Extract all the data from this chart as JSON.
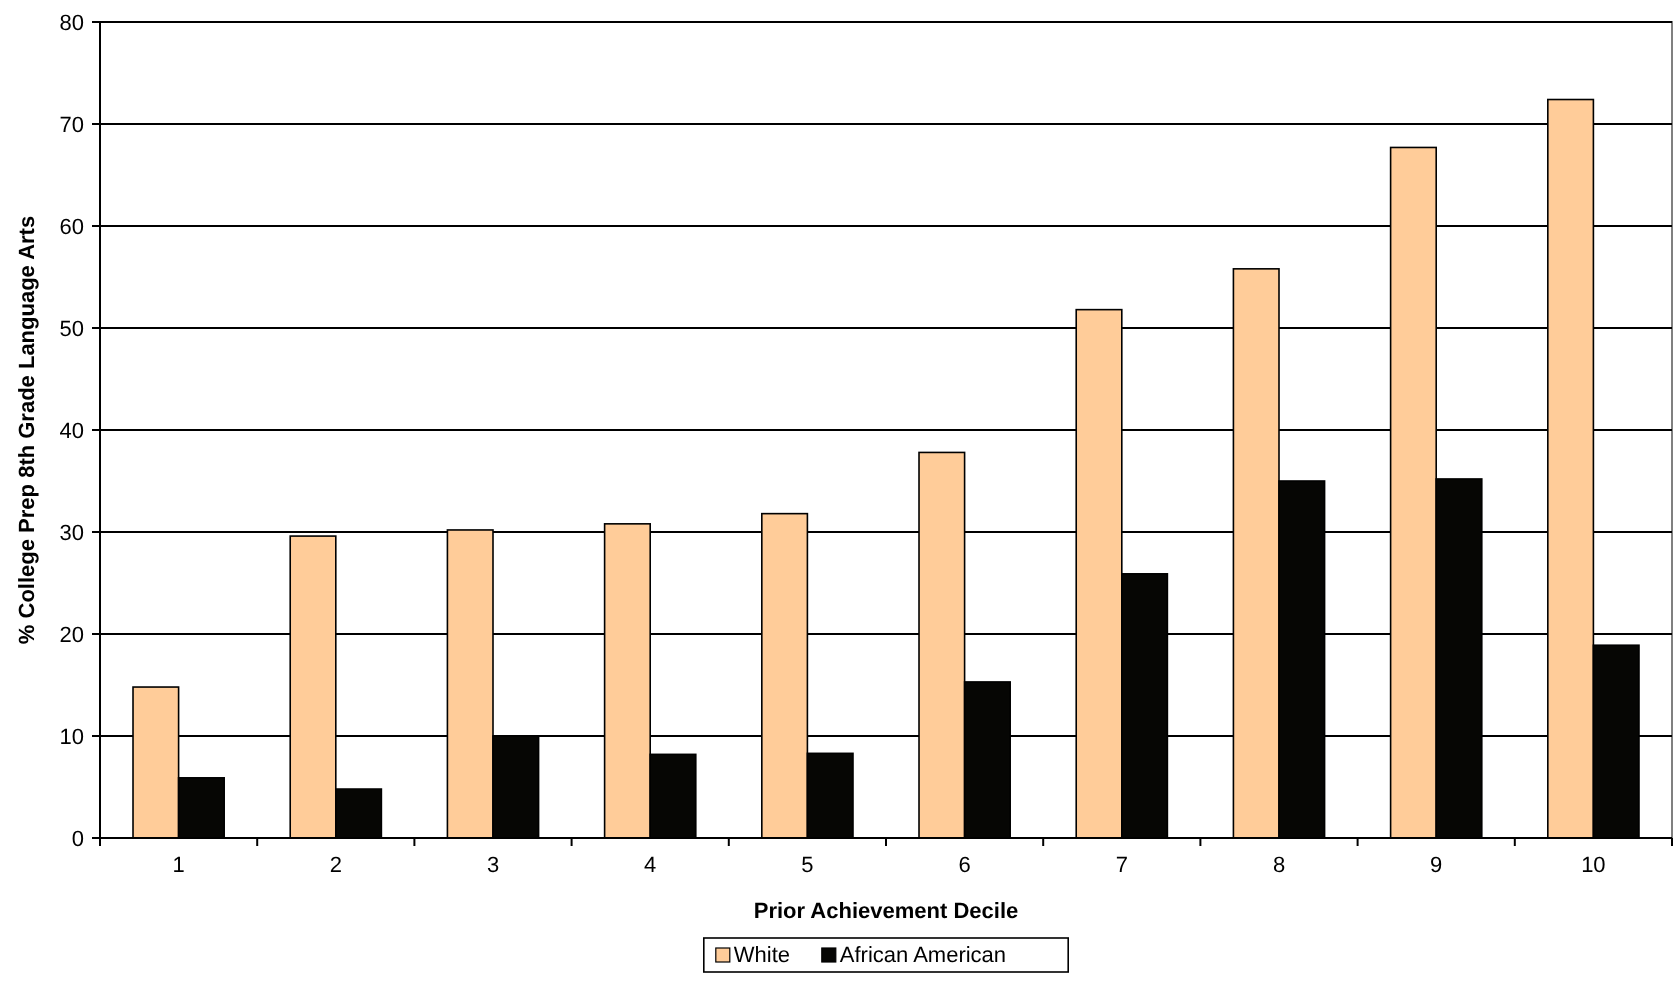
{
  "chart_data": {
    "type": "bar",
    "xlabel": "Prior Achievement Decile",
    "ylabel": "% College Prep 8th Grade Language Arts",
    "categories": [
      "1",
      "2",
      "3",
      "4",
      "5",
      "6",
      "7",
      "8",
      "9",
      "10"
    ],
    "series": [
      {
        "name": "White",
        "color": "#ffcc99",
        "values": [
          14.8,
          29.6,
          30.2,
          30.8,
          31.8,
          37.8,
          51.8,
          55.8,
          67.7,
          72.4
        ]
      },
      {
        "name": "African American",
        "color": "#060604",
        "values": [
          5.9,
          4.8,
          10.0,
          8.2,
          8.3,
          15.3,
          25.9,
          35.0,
          35.2,
          18.9
        ]
      }
    ],
    "ylim": [
      0,
      80
    ],
    "yticks": [
      0,
      10,
      20,
      30,
      40,
      50,
      60,
      70,
      80
    ],
    "grid": "y",
    "legend": "bottom"
  }
}
